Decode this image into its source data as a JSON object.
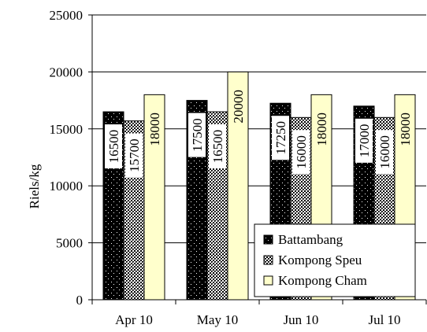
{
  "chart_data": {
    "type": "bar",
    "title": "",
    "xlabel": "",
    "ylabel": "Riels/kg",
    "ylim": [
      0,
      25000
    ],
    "yticks": [
      0,
      5000,
      10000,
      15000,
      20000,
      25000
    ],
    "grid": true,
    "legend_position": "bottom-right",
    "categories": [
      "Apr 10",
      "May 10",
      "Jun 10",
      "Jul 10"
    ],
    "series": [
      {
        "name": "Battambang",
        "values": [
          16500,
          17500,
          17250,
          17000
        ],
        "color": "#000000",
        "pattern": "dots-on-black"
      },
      {
        "name": "Kompong Speu",
        "values": [
          15700,
          16500,
          16000,
          16000
        ],
        "color": "#000000",
        "pattern": "dense-dots"
      },
      {
        "name": "Kompong Cham",
        "values": [
          18000,
          20000,
          18000,
          18000
        ],
        "color": "#ffffcc",
        "pattern": "solid"
      }
    ]
  }
}
